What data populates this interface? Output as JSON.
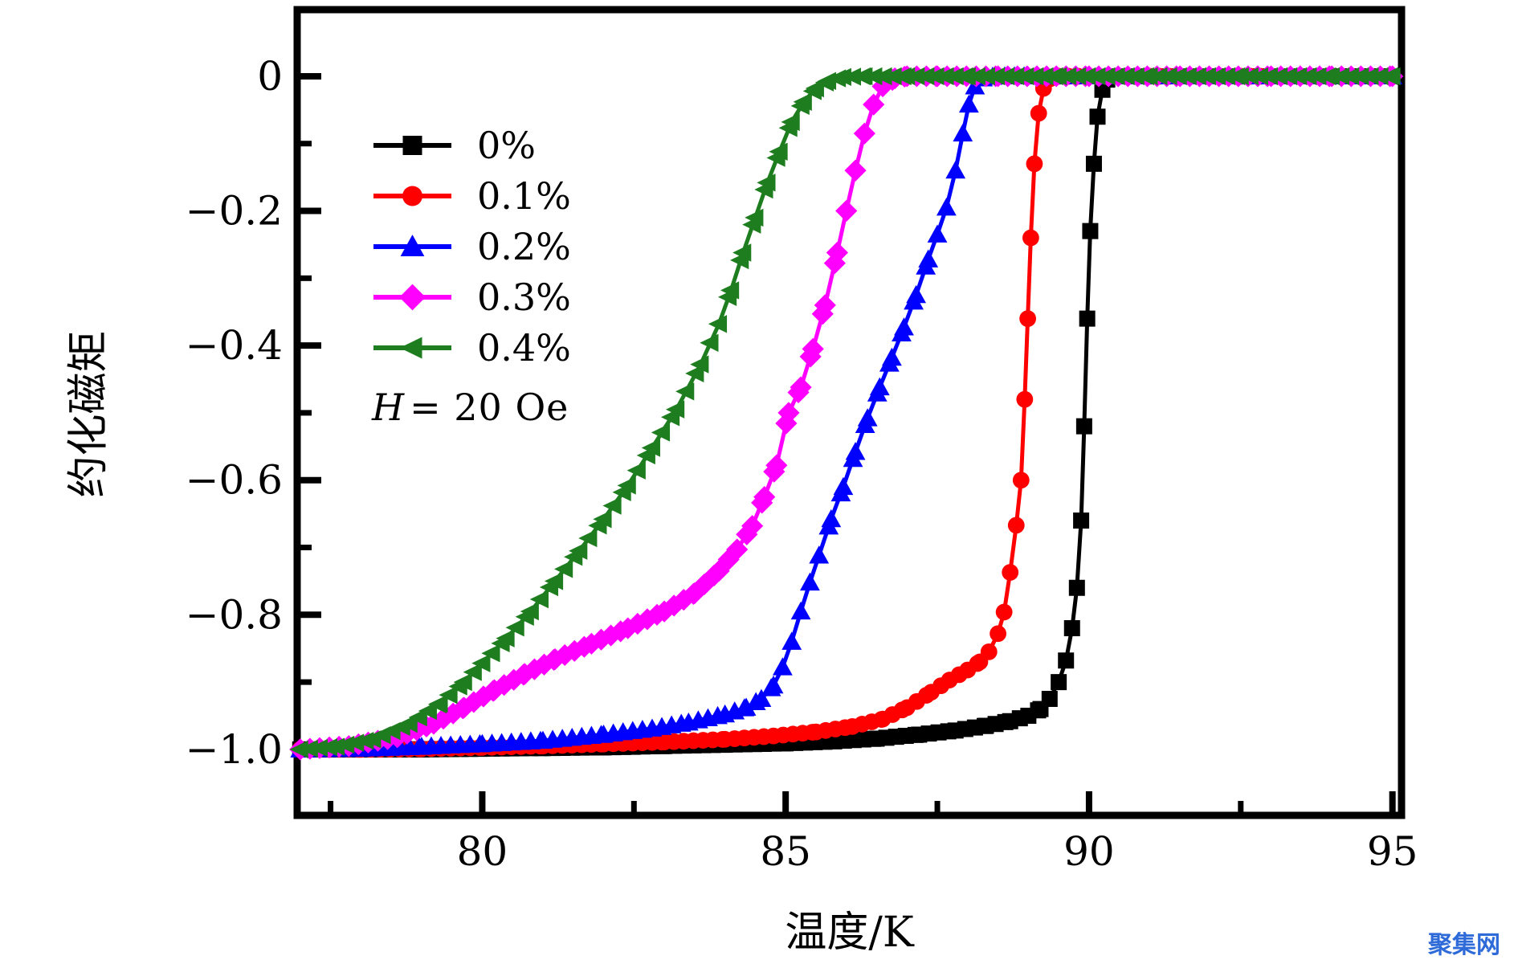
{
  "figure": {
    "background": "#ffffff",
    "annotation_h": "H",
    "annotation_rest": "= 20 Oe"
  },
  "watermark": {
    "text": "聚集网",
    "color": "#2e6bd9"
  },
  "chart_data": {
    "type": "line",
    "title": "",
    "xlabel": "温度/K",
    "ylabel": "约化磁矩",
    "annotation": "H = 20 Oe",
    "xlim": [
      76.95,
      95.15
    ],
    "ylim": [
      -1.098,
      0.099
    ],
    "grid": false,
    "legend_position": "upper-left-inside",
    "axis_color": "#000000",
    "x_ticks": [
      80,
      85,
      90,
      95
    ],
    "x_tick_labels": [
      "80",
      "85",
      "90",
      "95"
    ],
    "x_minor_ticks": [
      77.5,
      82.5,
      87.5,
      92.5
    ],
    "y_ticks": [
      0,
      -0.2,
      -0.4,
      -0.6,
      -0.8,
      -1.0
    ],
    "y_tick_labels": [
      "0",
      "−0.2",
      "−0.4",
      "−0.6",
      "−0.8",
      "−1.0"
    ],
    "y_minor_ticks": [
      -0.1,
      -0.3,
      -0.5,
      -0.7,
      -0.9
    ],
    "series": [
      {
        "name": "0%",
        "color": "#000000",
        "marker": "square",
        "points": [
          [
            77,
            -1
          ],
          [
            78,
            -1
          ],
          [
            79,
            -1
          ],
          [
            80,
            -0.999
          ],
          [
            81,
            -0.998
          ],
          [
            82,
            -0.997
          ],
          [
            83,
            -0.995
          ],
          [
            84,
            -0.993
          ],
          [
            85,
            -0.991
          ],
          [
            85.8,
            -0.988
          ],
          [
            86.5,
            -0.984
          ],
          [
            87.2,
            -0.978
          ],
          [
            87.8,
            -0.972
          ],
          [
            88.3,
            -0.965
          ],
          [
            88.7,
            -0.958
          ],
          [
            89.0,
            -0.95
          ],
          [
            89.2,
            -0.94
          ],
          [
            89.35,
            -0.925
          ],
          [
            89.5,
            -0.9
          ],
          [
            89.62,
            -0.868
          ],
          [
            89.72,
            -0.82
          ],
          [
            89.8,
            -0.76
          ],
          [
            89.87,
            -0.66
          ],
          [
            89.92,
            -0.52
          ],
          [
            89.97,
            -0.36
          ],
          [
            90.02,
            -0.23
          ],
          [
            90.08,
            -0.13
          ],
          [
            90.14,
            -0.06
          ],
          [
            90.22,
            -0.02
          ],
          [
            90.3,
            -0.005
          ],
          [
            90.45,
            0
          ],
          [
            91,
            0
          ],
          [
            92,
            0
          ],
          [
            93,
            0
          ],
          [
            94,
            0
          ],
          [
            95,
            0
          ]
        ]
      },
      {
        "name": "0.1%",
        "color": "#ff0000",
        "marker": "circle",
        "points": [
          [
            77,
            -1
          ],
          [
            78,
            -1
          ],
          [
            79,
            -0.999
          ],
          [
            80,
            -0.997
          ],
          [
            81,
            -0.995
          ],
          [
            82,
            -0.992
          ],
          [
            83,
            -0.989
          ],
          [
            84,
            -0.985
          ],
          [
            84.8,
            -0.98
          ],
          [
            85.5,
            -0.974
          ],
          [
            86.1,
            -0.966
          ],
          [
            86.6,
            -0.955
          ],
          [
            87.0,
            -0.938
          ],
          [
            87.4,
            -0.915
          ],
          [
            87.7,
            -0.897
          ],
          [
            88.0,
            -0.882
          ],
          [
            88.2,
            -0.87
          ],
          [
            88.35,
            -0.855
          ],
          [
            88.5,
            -0.828
          ],
          [
            88.6,
            -0.796
          ],
          [
            88.7,
            -0.737
          ],
          [
            88.8,
            -0.667
          ],
          [
            88.88,
            -0.6
          ],
          [
            88.94,
            -0.48
          ],
          [
            88.99,
            -0.36
          ],
          [
            89.04,
            -0.24
          ],
          [
            89.1,
            -0.13
          ],
          [
            89.17,
            -0.055
          ],
          [
            89.25,
            -0.018
          ],
          [
            89.35,
            -0.004
          ],
          [
            89.5,
            0
          ],
          [
            90,
            0
          ],
          [
            91,
            0
          ],
          [
            92.5,
            0
          ],
          [
            94,
            0
          ],
          [
            95,
            0
          ]
        ]
      },
      {
        "name": "0.2%",
        "color": "#0000ff",
        "marker": "triangle-up",
        "points": [
          [
            77,
            -1
          ],
          [
            78,
            -0.999
          ],
          [
            79,
            -0.996
          ],
          [
            80,
            -0.992
          ],
          [
            81,
            -0.987
          ],
          [
            82,
            -0.978
          ],
          [
            82.8,
            -0.969
          ],
          [
            83.4,
            -0.96
          ],
          [
            84.0,
            -0.948
          ],
          [
            84.35,
            -0.938
          ],
          [
            84.6,
            -0.925
          ],
          [
            84.8,
            -0.905
          ],
          [
            84.95,
            -0.878
          ],
          [
            85.1,
            -0.84
          ],
          [
            85.25,
            -0.795
          ],
          [
            85.4,
            -0.752
          ],
          [
            85.55,
            -0.712
          ],
          [
            85.75,
            -0.658
          ],
          [
            85.95,
            -0.61
          ],
          [
            86.15,
            -0.558
          ],
          [
            86.35,
            -0.508
          ],
          [
            86.55,
            -0.462
          ],
          [
            86.75,
            -0.418
          ],
          [
            86.95,
            -0.373
          ],
          [
            87.15,
            -0.325
          ],
          [
            87.35,
            -0.272
          ],
          [
            87.5,
            -0.235
          ],
          [
            87.65,
            -0.195
          ],
          [
            87.8,
            -0.14
          ],
          [
            87.92,
            -0.085
          ],
          [
            88.02,
            -0.042
          ],
          [
            88.12,
            -0.015
          ],
          [
            88.25,
            -0.003
          ],
          [
            88.45,
            0
          ],
          [
            89,
            0
          ],
          [
            90,
            0
          ],
          [
            91.5,
            0
          ],
          [
            93,
            0
          ],
          [
            94,
            0
          ],
          [
            95,
            0
          ]
        ]
      },
      {
        "name": "0.3%",
        "color": "#ff00ff",
        "marker": "diamond",
        "points": [
          [
            77,
            -1
          ],
          [
            77.8,
            -0.995
          ],
          [
            78.6,
            -0.982
          ],
          [
            79.2,
            -0.962
          ],
          [
            79.7,
            -0.938
          ],
          [
            80.2,
            -0.912
          ],
          [
            80.7,
            -0.888
          ],
          [
            81.2,
            -0.866
          ],
          [
            81.8,
            -0.843
          ],
          [
            82.4,
            -0.82
          ],
          [
            83.0,
            -0.795
          ],
          [
            83.5,
            -0.768
          ],
          [
            83.9,
            -0.735
          ],
          [
            84.2,
            -0.703
          ],
          [
            84.45,
            -0.668
          ],
          [
            84.65,
            -0.625
          ],
          [
            84.85,
            -0.578
          ],
          [
            85.05,
            -0.5
          ],
          [
            85.25,
            -0.462
          ],
          [
            85.45,
            -0.405
          ],
          [
            85.65,
            -0.34
          ],
          [
            85.85,
            -0.262
          ],
          [
            86.0,
            -0.2
          ],
          [
            86.15,
            -0.14
          ],
          [
            86.3,
            -0.085
          ],
          [
            86.45,
            -0.042
          ],
          [
            86.6,
            -0.015
          ],
          [
            86.8,
            -0.003
          ],
          [
            87.0,
            0
          ],
          [
            87.5,
            0
          ],
          [
            88.5,
            0
          ],
          [
            90,
            0
          ],
          [
            91.5,
            0
          ],
          [
            93,
            0
          ],
          [
            94,
            0
          ],
          [
            95,
            0
          ]
        ]
      },
      {
        "name": "0.4%",
        "color": "#1e7d1e",
        "marker": "triangle-left",
        "points": [
          [
            77,
            -1
          ],
          [
            77.6,
            -0.996
          ],
          [
            78.2,
            -0.985
          ],
          [
            78.8,
            -0.962
          ],
          [
            79.3,
            -0.932
          ],
          [
            79.7,
            -0.9
          ],
          [
            80.0,
            -0.872
          ],
          [
            80.4,
            -0.835
          ],
          [
            80.8,
            -0.795
          ],
          [
            81.2,
            -0.75
          ],
          [
            81.6,
            -0.705
          ],
          [
            82.0,
            -0.658
          ],
          [
            82.4,
            -0.608
          ],
          [
            82.8,
            -0.552
          ],
          [
            83.2,
            -0.495
          ],
          [
            83.6,
            -0.428
          ],
          [
            83.9,
            -0.368
          ],
          [
            84.1,
            -0.318
          ],
          [
            84.3,
            -0.262
          ],
          [
            84.5,
            -0.21
          ],
          [
            84.7,
            -0.158
          ],
          [
            84.9,
            -0.112
          ],
          [
            85.1,
            -0.068
          ],
          [
            85.3,
            -0.038
          ],
          [
            85.5,
            -0.018
          ],
          [
            85.7,
            -0.007
          ],
          [
            85.95,
            -0.001
          ],
          [
            86.3,
            0
          ],
          [
            87,
            0
          ],
          [
            88,
            0
          ],
          [
            89.5,
            0
          ],
          [
            91,
            0
          ],
          [
            92.5,
            0
          ],
          [
            94,
            0
          ],
          [
            95,
            0
          ]
        ]
      }
    ]
  }
}
